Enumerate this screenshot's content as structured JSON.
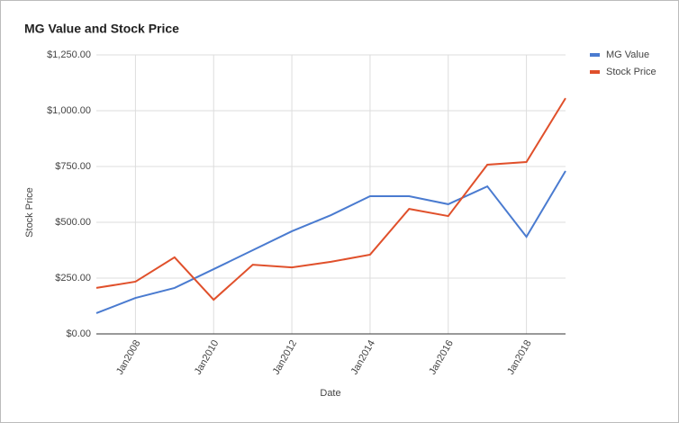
{
  "chart_data": {
    "type": "line",
    "title": "MG Value and Stock Price",
    "x_label": "Date",
    "y_label": "Stock Price",
    "x": [
      2007,
      2008,
      2009,
      2010,
      2011,
      2012,
      2013,
      2014,
      2015,
      2016,
      2017,
      2018,
      2019
    ],
    "series": [
      {
        "name": "MG Value",
        "color": "#4a7bd0",
        "values": [
          93,
          161,
          206,
          290,
          375,
          460,
          532,
          617,
          617,
          581,
          661,
          435,
          730
        ]
      },
      {
        "name": "Stock Price",
        "color": "#e0502b",
        "values": [
          206,
          234,
          343,
          153,
          310,
          298,
          323,
          355,
          560,
          528,
          758,
          770,
          1056
        ]
      }
    ],
    "xlim": [
      2007,
      2019
    ],
    "xticks": [
      {
        "value": 2008,
        "label": "Jan2008"
      },
      {
        "value": 2010,
        "label": "Jan2010"
      },
      {
        "value": 2012,
        "label": "Jan2012"
      },
      {
        "value": 2014,
        "label": "Jan2014"
      },
      {
        "value": 2016,
        "label": "Jan2016"
      },
      {
        "value": 2018,
        "label": "Jan2018"
      }
    ],
    "ylim": [
      0,
      1250
    ],
    "yticks": [
      {
        "value": 0,
        "label": "$0.00"
      },
      {
        "value": 250,
        "label": "$250.00"
      },
      {
        "value": 500,
        "label": "$500.00"
      },
      {
        "value": 750,
        "label": "$750.00"
      },
      {
        "value": 1000,
        "label": "$1,000.00"
      },
      {
        "value": 1250,
        "label": "$1,250.00"
      }
    ],
    "grid": true,
    "legend": "right"
  }
}
